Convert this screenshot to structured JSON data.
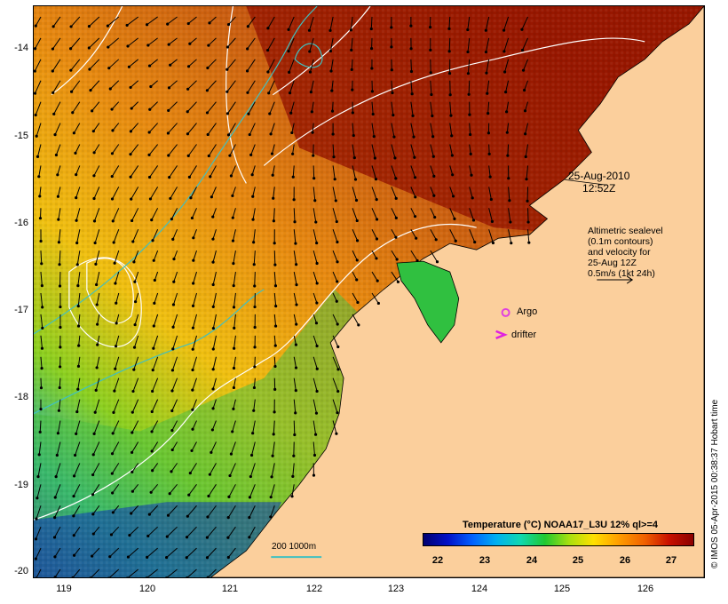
{
  "map": {
    "date_stamp_line1": "25-Aug-2010",
    "date_stamp_line2": "12:52Z",
    "altimetry_note": [
      "Altimetric sealevel",
      "(0.1m contours)",
      "and velocity for",
      "25-Aug 12Z",
      "0.5m/s (1kt 24h)"
    ],
    "argo_label": "Argo",
    "drifter_label": "drifter",
    "scale_text": "200  1000m",
    "credit": "© IMOS 05-Apr-2015 00:38:37 Hobart time",
    "lon_ticks": [
      "119",
      "120",
      "121",
      "122",
      "123",
      "124",
      "125",
      "126"
    ],
    "lat_ticks": [
      "-14",
      "-15",
      "-16",
      "-17",
      "-18",
      "-19",
      "-20"
    ],
    "colors": {
      "land": "#fbcf9c",
      "contour": "#ffffff",
      "bathymetry": "#40c0c0",
      "argo": "#e040e0",
      "drifter": "#e020e0"
    }
  },
  "colorbar": {
    "title": "Temperature (°C) NOAA17_L3U 12% ql>=4",
    "ticks": [
      "22",
      "23",
      "24",
      "25",
      "26",
      "27"
    ]
  }
}
